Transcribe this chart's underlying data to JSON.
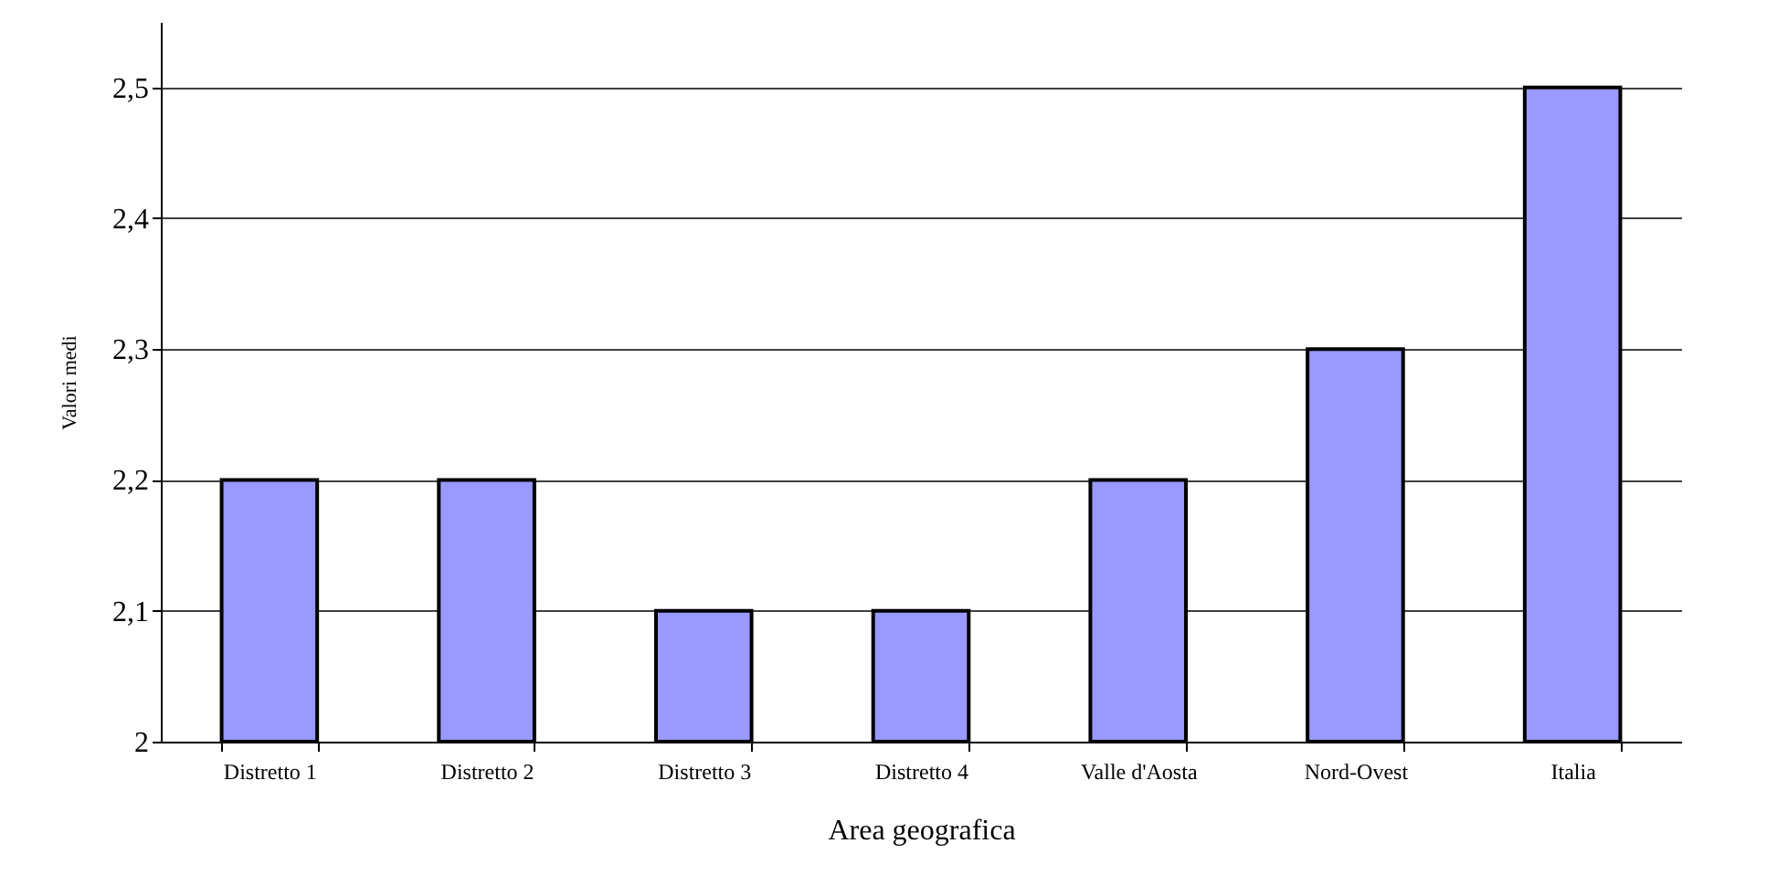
{
  "chart_data": {
    "type": "bar",
    "xlabel": "Area geografica",
    "ylabel": "Valori medi",
    "categories": [
      "Distretto 1",
      "Distretto 2",
      "Distretto 3",
      "Distretto 4",
      "Valle d'Aosta",
      "Nord-Ovest",
      "Italia"
    ],
    "values": [
      2.2,
      2.2,
      2.1,
      2.1,
      2.2,
      2.3,
      2.5
    ],
    "color": "#9999ff",
    "ylim": [
      2,
      2.55
    ],
    "yticks": [
      2,
      {
        "value": 2.1,
        "label": "2,1"
      },
      {
        "value": 2.2,
        "label": "2,2"
      },
      {
        "value": 2.3,
        "label": "2,3"
      },
      {
        "value": 2.4,
        "label": "2,4"
      },
      {
        "value": 2.5,
        "label": "2,5"
      }
    ],
    "grid": "y"
  }
}
